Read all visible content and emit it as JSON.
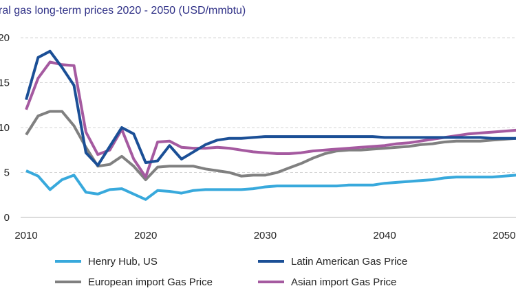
{
  "chart_data": {
    "type": "line",
    "title": "ral gas long-term prices 2020 - 2050 (USD/mmbtu)",
    "xlabel": "",
    "ylabel": "",
    "xlim": [
      2010,
      2051
    ],
    "ylim": [
      0,
      20
    ],
    "x_ticks": [
      "2010",
      "2020",
      "2030",
      "2040",
      "2050"
    ],
    "y_ticks": [
      "0",
      "5",
      "10",
      "15",
      "20"
    ],
    "grid": "horizontal dashed",
    "legend_position": "bottom",
    "x": [
      2010,
      2011,
      2012,
      2013,
      2014,
      2015,
      2016,
      2017,
      2018,
      2019,
      2020,
      2021,
      2022,
      2023,
      2024,
      2025,
      2026,
      2027,
      2028,
      2029,
      2030,
      2031,
      2032,
      2033,
      2034,
      2035,
      2036,
      2037,
      2038,
      2039,
      2040,
      2041,
      2042,
      2043,
      2044,
      2045,
      2046,
      2047,
      2048,
      2049,
      2050,
      2051
    ],
    "series": [
      {
        "name": "Henry Hub, US",
        "color": "#38a9dc",
        "values": [
          5.2,
          4.6,
          3.1,
          4.2,
          4.7,
          2.8,
          2.6,
          3.1,
          3.2,
          2.6,
          2.0,
          3.0,
          2.9,
          2.7,
          3.0,
          3.1,
          3.1,
          3.1,
          3.1,
          3.2,
          3.4,
          3.5,
          3.5,
          3.5,
          3.5,
          3.5,
          3.5,
          3.6,
          3.6,
          3.6,
          3.8,
          3.9,
          4.0,
          4.1,
          4.2,
          4.4,
          4.5,
          4.5,
          4.5,
          4.5,
          4.6,
          4.7
        ]
      },
      {
        "name": "Latin American Gas Price",
        "color": "#1b4f96",
        "values": [
          13.1,
          17.8,
          18.5,
          16.7,
          14.7,
          7.2,
          5.8,
          7.9,
          10.0,
          9.3,
          6.1,
          6.3,
          8.0,
          6.5,
          7.3,
          8.1,
          8.6,
          8.8,
          8.8,
          8.9,
          9.0,
          9.0,
          9.0,
          9.0,
          9.0,
          9.0,
          9.0,
          9.0,
          9.0,
          9.0,
          8.9,
          8.9,
          8.9,
          8.9,
          8.9,
          8.9,
          8.9,
          8.9,
          8.9,
          8.8,
          8.8,
          8.8
        ]
      },
      {
        "name": "European import Gas Price",
        "color": "#808080",
        "values": [
          9.2,
          11.3,
          11.8,
          11.8,
          10.2,
          7.8,
          5.7,
          5.9,
          6.8,
          5.7,
          4.2,
          5.6,
          5.7,
          5.7,
          5.7,
          5.4,
          5.2,
          5.0,
          4.6,
          4.7,
          4.7,
          5.0,
          5.5,
          6.0,
          6.6,
          7.1,
          7.4,
          7.5,
          7.5,
          7.6,
          7.7,
          7.8,
          7.9,
          8.1,
          8.2,
          8.4,
          8.5,
          8.5,
          8.5,
          8.6,
          8.7,
          8.8
        ]
      },
      {
        "name": "Asian import Gas Price",
        "color": "#a55aa0",
        "values": [
          12.0,
          15.5,
          17.3,
          17.0,
          16.9,
          9.5,
          7.0,
          7.5,
          9.8,
          6.5,
          4.5,
          8.4,
          8.5,
          7.8,
          7.7,
          7.7,
          7.8,
          7.7,
          7.5,
          7.3,
          7.2,
          7.1,
          7.1,
          7.2,
          7.4,
          7.5,
          7.6,
          7.7,
          7.8,
          7.9,
          8.0,
          8.2,
          8.3,
          8.5,
          8.7,
          8.9,
          9.1,
          9.3,
          9.4,
          9.5,
          9.6,
          9.7
        ]
      }
    ]
  }
}
